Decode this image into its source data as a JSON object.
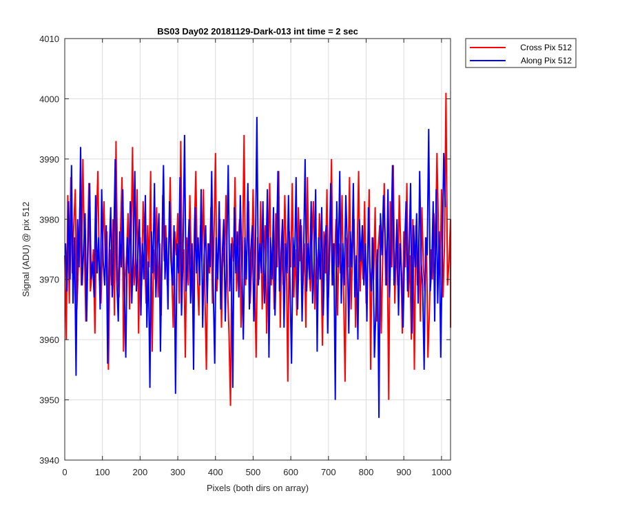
{
  "chart_data": {
    "type": "line",
    "title": "BS03 Day02 20181129-Dark-013 int time = 2 sec",
    "xlabel": "Pixels (both dirs on array)",
    "ylabel": "Signal (ADU) @ pix 512",
    "xlim": [
      0,
      1024
    ],
    "ylim": [
      3940,
      4010
    ],
    "xticks": [
      0,
      100,
      200,
      300,
      400,
      500,
      600,
      700,
      800,
      900,
      1000
    ],
    "yticks": [
      3940,
      3950,
      3960,
      3970,
      3980,
      3990,
      4000,
      4010
    ],
    "grid": true,
    "legend_position": "outside-top-right",
    "series": [
      {
        "name": "Cross Pix 512",
        "color": "#ff0000",
        "x_start": 0,
        "x_step": 4,
        "values": [
          3974,
          3960,
          3984,
          3966,
          3987,
          3971,
          3979,
          3985,
          3965,
          3972,
          3982,
          3969,
          3990,
          3976,
          3963,
          3973,
          3986,
          3968,
          3971,
          3975,
          3961,
          3979,
          3988,
          3970,
          3966,
          3975,
          3983,
          3972,
          3978,
          3955,
          3975,
          3969,
          3980,
          3964,
          3993,
          3972,
          3967,
          3978,
          3987,
          3958,
          3970,
          3974,
          3981,
          3965,
          3976,
          3992,
          3969,
          3973,
          3985,
          3961,
          3977,
          3969,
          3983,
          3974,
          3966,
          3979,
          3972,
          3988,
          3958,
          3975,
          3970,
          3982,
          3967,
          3976,
          3964,
          3984,
          3973,
          3979,
          3969,
          3975,
          3987,
          3971,
          3962,
          3978,
          3974,
          3981,
          3966,
          3993,
          3970,
          3975,
          3957,
          3977,
          3969,
          3984,
          3972,
          3966,
          3978,
          3988,
          3971,
          3964,
          3979,
          3973,
          3985,
          3968,
          3955,
          3976,
          3971,
          3982,
          3966,
          3977,
          3991,
          3968,
          3974,
          3980,
          3962,
          3976,
          3972,
          3984,
          3969,
          3961,
          3949,
          3977,
          3973,
          3987,
          3968,
          3975,
          3980,
          3962,
          3974,
          3994,
          3969,
          3976,
          3983,
          3966,
          3972,
          3985,
          3971,
          3957,
          3977,
          3970,
          3983,
          3965,
          3974,
          3979,
          3961,
          3973,
          3986,
          3969,
          3976,
          3965,
          3981,
          3972,
          3988,
          3962,
          3976,
          3969,
          3984,
          3974,
          3953,
          3978,
          3972,
          3986,
          3967,
          3975,
          3964,
          3982,
          3973,
          3979,
          3969,
          3976,
          3962,
          3987,
          3972,
          3968,
          3977,
          3983,
          3965,
          3975,
          3970,
          3981,
          3974,
          3959,
          3978,
          3971,
          3985,
          3967,
          3976,
          3990,
          3969,
          3973,
          3980,
          3964,
          3976,
          3971,
          3984,
          3969,
          3953,
          3977,
          3972,
          3987,
          3965,
          3975,
          3980,
          3962,
          3974,
          3988,
          3968,
          3976,
          3970,
          3983,
          3966,
          3973,
          3985,
          3955,
          3977,
          3970,
          3982,
          3963,
          3975,
          3979,
          3961,
          3974,
          3986,
          3969,
          3976,
          3950,
          3983,
          3972,
          3989,
          3966,
          3976,
          3969,
          3984,
          3975,
          3961,
          3978,
          3972,
          3986,
          3967,
          3974,
          3960,
          3980,
          3955,
          3979,
          3969,
          3976,
          3963,
          3982,
          3972,
          3968,
          3977,
          3957,
          3965,
          3975,
          3970,
          3981,
          3974,
          3991,
          3978,
          3969,
          3985,
          3967,
          3976,
          4001,
          3969,
          3973,
          3980,
          3964,
          3976,
          3971,
          3962,
          3975
        ]
      },
      {
        "name": "Along Pix 512",
        "color": "#0000ff",
        "x_start": 2,
        "x_step": 4,
        "values": [
          3976,
          3968,
          3983,
          3970,
          3989,
          3966,
          3977,
          3954,
          3980,
          3972,
          3992,
          3969,
          3975,
          3981,
          3963,
          3976,
          3986,
          3970,
          3973,
          3967,
          3984,
          3971,
          3977,
          3965,
          3985,
          3973,
          3969,
          3979,
          3956,
          3974,
          3982,
          3967,
          3976,
          3990,
          3970,
          3963,
          3978,
          3972,
          3985,
          3969,
          3957,
          3977,
          3971,
          3983,
          3966,
          3975,
          3988,
          3968,
          3974,
          3980,
          3964,
          3976,
          3970,
          3984,
          3962,
          3973,
          3952,
          3978,
          3971,
          3986,
          3967,
          3975,
          3981,
          3958,
          3974,
          3989,
          3970,
          3977,
          3965,
          3983,
          3973,
          3969,
          3979,
          3951,
          3976,
          3971,
          3987,
          3964,
          3975,
          3994,
          3968,
          3973,
          3980,
          3966,
          3976,
          3955,
          3982,
          3971,
          3977,
          3969,
          3985,
          3962,
          3974,
          3979,
          3966,
          3976,
          3972,
          3988,
          3969,
          3956,
          3977,
          3970,
          3983,
          3965,
          3974,
          3980,
          3963,
          3975,
          3989,
          3968,
          3976,
          3952,
          3982,
          3971,
          3978,
          3967,
          3984,
          3973,
          3960,
          3977,
          3970,
          3986,
          3965,
          3975,
          3979,
          3963,
          3974,
          3997,
          3969,
          3976,
          3971,
          3983,
          3966,
          3973,
          3985,
          3957,
          3977,
          3970,
          3982,
          3964,
          3975,
          3988,
          3968,
          3974,
          3980,
          3962,
          3976,
          3971,
          3984,
          3969,
          3956,
          3977,
          3972,
          3987,
          3965,
          3975,
          3980,
          3963,
          3974,
          3990,
          3968,
          3976,
          3970,
          3983,
          3966,
          3973,
          3985,
          3958,
          3977,
          3970,
          3982,
          3964,
          3975,
          3979,
          3961,
          3974,
          3986,
          3969,
          3976,
          3950,
          3983,
          3972,
          3988,
          3966,
          3976,
          3969,
          3984,
          3975,
          3961,
          3978,
          3972,
          3986,
          3967,
          3974,
          3960,
          3980,
          3973,
          3979,
          3969,
          3976,
          3963,
          3982,
          3972,
          3968,
          3977,
          3957,
          3965,
          3975,
          3947,
          3981,
          3974,
          3984,
          3978,
          3969,
          3985,
          3967,
          3976,
          3989,
          3969,
          3973,
          3980,
          3964,
          3976,
          3971,
          3962,
          3975,
          3983,
          3968,
          3974,
          3986,
          3961,
          3979,
          3972,
          3981,
          3966,
          3988,
          3973,
          3969,
          3955,
          3977,
          3974,
          3995,
          3968,
          3972,
          3983,
          3963,
          3985,
          3966,
          3978,
          3957,
          3975,
          3991,
          3982
        ]
      }
    ]
  }
}
